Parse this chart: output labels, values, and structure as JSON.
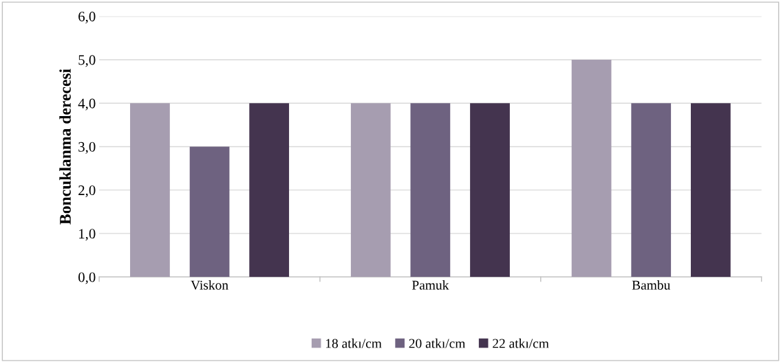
{
  "chart_data": {
    "type": "bar",
    "ylabel": "Boncuklanma derecesi",
    "categories": [
      "Viskon",
      "Pamuk",
      "Bambu"
    ],
    "series": [
      {
        "name": "18 atkı/cm",
        "color": "#a69db0",
        "values": [
          4,
          4,
          5
        ]
      },
      {
        "name": "20 atkı/cm",
        "color": "#6e6280",
        "values": [
          3,
          4,
          4
        ]
      },
      {
        "name": "22 atkı/cm",
        "color": "#44344f",
        "values": [
          4,
          4,
          4
        ]
      }
    ],
    "ylim": [
      0,
      6
    ],
    "yticks": [
      {
        "value": 0,
        "label": "0,0"
      },
      {
        "value": 1,
        "label": "1,0"
      },
      {
        "value": 2,
        "label": "2,0"
      },
      {
        "value": 3,
        "label": "3,0"
      },
      {
        "value": 4,
        "label": "4,0"
      },
      {
        "value": 5,
        "label": "5,0"
      },
      {
        "value": 6,
        "label": "6,0"
      }
    ],
    "grid": "y",
    "legend": "bottom"
  }
}
